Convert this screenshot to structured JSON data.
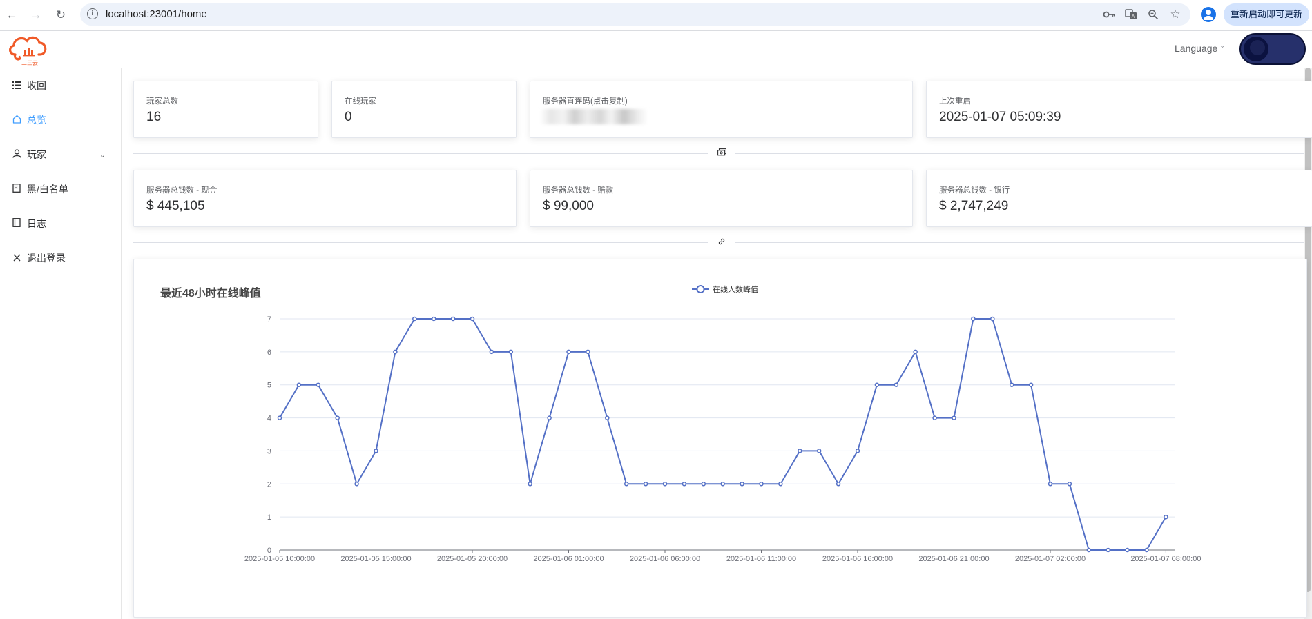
{
  "browser": {
    "url": "localhost:23001/home",
    "update_button": "重新启动即可更新"
  },
  "header": {
    "language_label": "Language",
    "logo_text": "二三云"
  },
  "sidebar": {
    "items": [
      {
        "label": "收回",
        "icon": "collapse-list-icon",
        "active": false
      },
      {
        "label": "总览",
        "icon": "home-icon",
        "active": true
      },
      {
        "label": "玩家",
        "icon": "user-icon",
        "active": false,
        "has_submenu": true
      },
      {
        "label": "黑/白名单",
        "icon": "notebook-icon",
        "active": false
      },
      {
        "label": "日志",
        "icon": "book-icon",
        "active": false
      },
      {
        "label": "退出登录",
        "icon": "close-icon",
        "active": false
      }
    ]
  },
  "stats_row1": [
    {
      "label": "玩家总数",
      "value": "16"
    },
    {
      "label": "在线玩家",
      "value": "0"
    },
    {
      "label": "服务器直连码(点击复制)",
      "value": ""
    },
    {
      "label": "上次重启",
      "value": "2025-01-07 05:09:39"
    }
  ],
  "stats_row2": [
    {
      "label": "服务器总钱数 - 现金",
      "value": "$ 445,105"
    },
    {
      "label": "服务器总钱数 - 赔款",
      "value": "$ 99,000"
    },
    {
      "label": "服务器总钱数 - 银行",
      "value": "$ 2,747,249"
    }
  ],
  "colors": {
    "accent": "#409eff",
    "series": "#5470c6"
  },
  "chart_data": {
    "type": "line",
    "title": "最近48小时在线峰值",
    "legend_position": "top-center",
    "grid": true,
    "x_tick_labels": [
      "2025-01-05 10:00:00",
      "2025-01-05 15:00:00",
      "2025-01-05 20:00:00",
      "2025-01-06 01:00:00",
      "2025-01-06 06:00:00",
      "2025-01-06 11:00:00",
      "2025-01-06 16:00:00",
      "2025-01-06 21:00:00",
      "2025-01-07 02:00:00",
      "2025-01-07 08:00:00"
    ],
    "x_start": "2025-01-05 10:00:00",
    "x_interval_hours": 1,
    "ylim": [
      0,
      7
    ],
    "y_ticks": [
      0,
      1,
      2,
      3,
      4,
      5,
      6,
      7
    ],
    "series": [
      {
        "name": "在线人数峰值",
        "values": [
          4,
          5,
          5,
          4,
          2,
          3,
          6,
          7,
          7,
          7,
          7,
          6,
          6,
          2,
          4,
          6,
          6,
          4,
          2,
          2,
          2,
          2,
          2,
          2,
          2,
          2,
          2,
          3,
          3,
          2,
          3,
          5,
          5,
          6,
          4,
          4,
          7,
          7,
          5,
          5,
          2,
          2,
          0,
          0,
          0,
          0,
          1
        ]
      }
    ]
  }
}
